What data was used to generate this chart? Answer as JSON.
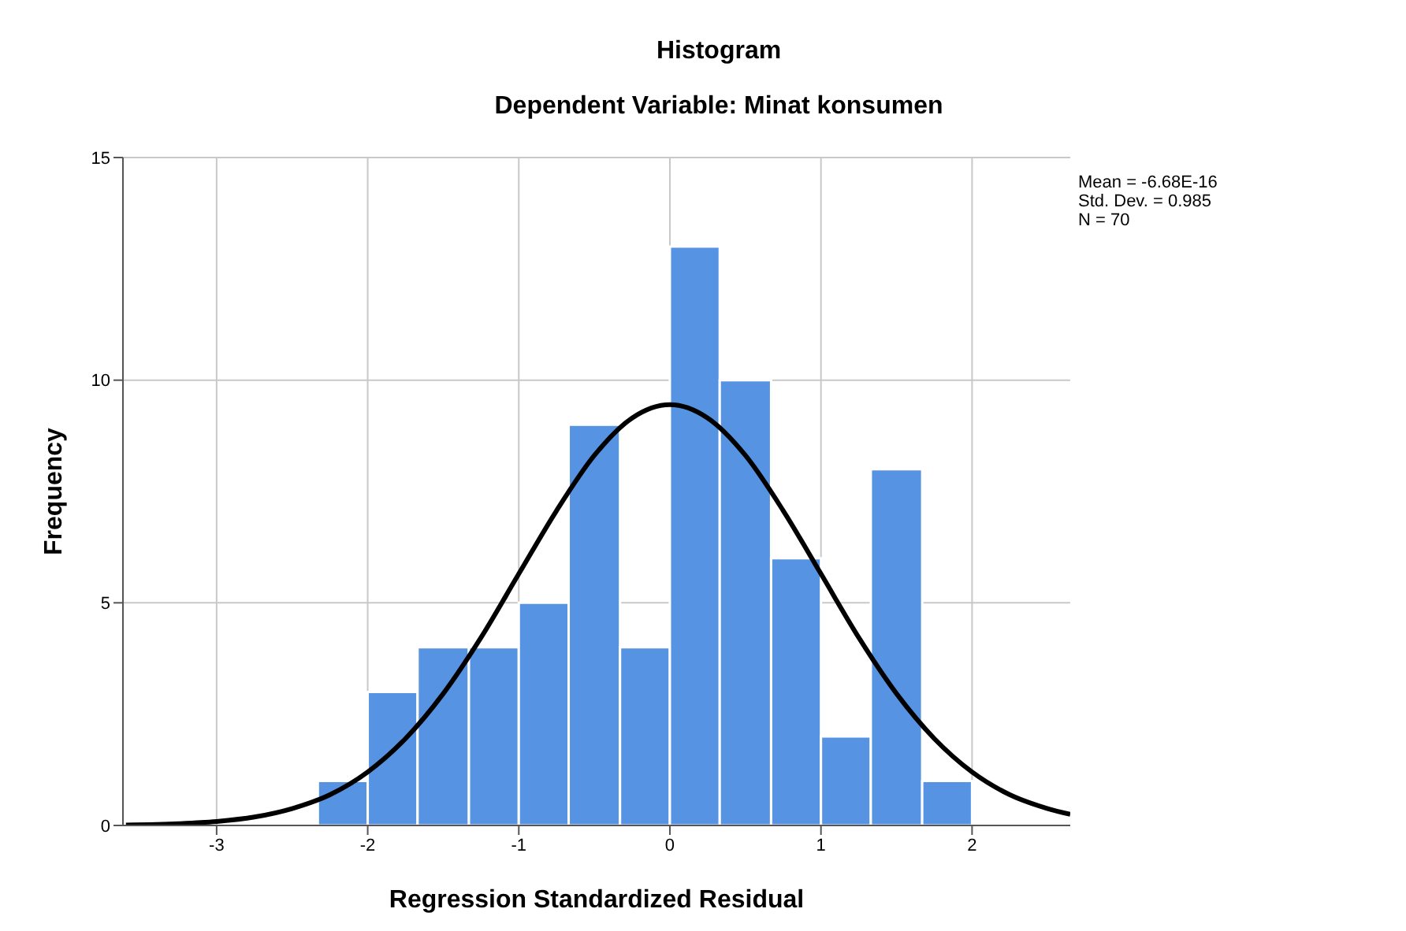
{
  "chart_data": {
    "type": "histogram",
    "title": "Histogram",
    "subtitle": "Dependent Variable: Minat konsumen",
    "xlabel": "Regression Standardized Residual",
    "ylabel": "Frequency",
    "bins": [
      -2.33,
      -2,
      -1.67,
      -1.33,
      -1,
      -0.67,
      -0.33,
      0,
      0.33,
      0.67,
      1,
      1.33,
      1.67,
      2
    ],
    "values": [
      1,
      3,
      4,
      4,
      5,
      9,
      4,
      13,
      10,
      6,
      2,
      8,
      1
    ],
    "color": "#5694e3",
    "series": [
      {
        "type": "line",
        "color": "#000000",
        "x": [
          -3.6,
          -3.25,
          -3,
          -2.75,
          -2.5,
          -2.25,
          -2,
          -1.75,
          -1.5,
          -1.25,
          -1,
          -0.75,
          -0.5,
          -0.25,
          0,
          0.25,
          0.5,
          0.75,
          1,
          1.25,
          1.5,
          1.75,
          2,
          2.25,
          2.5,
          2.65
        ],
        "values": [
          0.01,
          0.04,
          0.09,
          0.19,
          0.38,
          0.69,
          1.2,
          1.95,
          2.96,
          4.22,
          5.65,
          7.07,
          8.31,
          9.15,
          9.45,
          9.15,
          8.31,
          7.07,
          5.65,
          4.22,
          2.96,
          1.95,
          1.2,
          0.69,
          0.38,
          0.25
        ]
      }
    ],
    "xlim": [
      -3.62,
      2.65
    ],
    "xticks": [
      -3,
      -2,
      -1,
      0,
      1,
      2
    ],
    "ylim": [
      0,
      15
    ],
    "yticks": [
      0,
      5,
      10,
      15
    ],
    "grid": true,
    "annotations": [
      "Mean = -6.68E-16",
      "Std. Dev. = 0.985",
      "N = 70"
    ]
  }
}
